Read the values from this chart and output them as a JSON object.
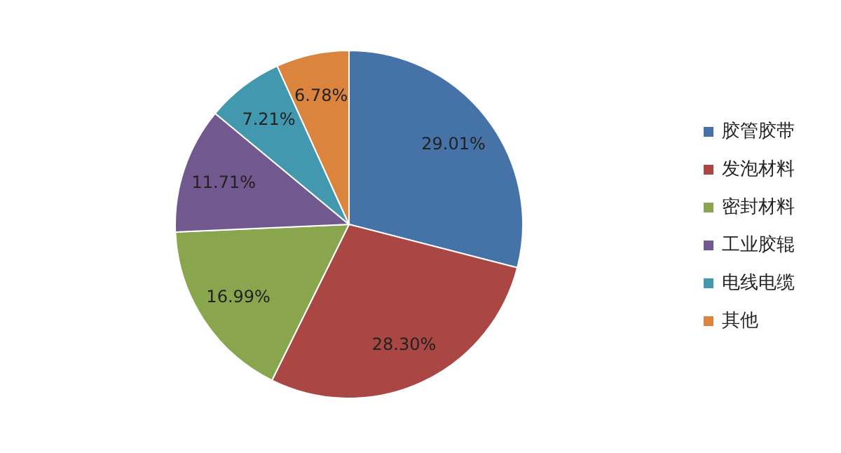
{
  "chart_data": {
    "type": "pie",
    "categories": [
      "胶管胶带",
      "发泡材料",
      "密封材料",
      "工业胶辊",
      "电线电缆",
      "其他"
    ],
    "values": [
      29.01,
      28.3,
      16.99,
      11.71,
      7.21,
      6.78
    ],
    "value_labels": [
      "29.01%",
      "28.30%",
      "16.99%",
      "11.71%",
      "7.21%",
      "6.78%"
    ],
    "colors": [
      "#4572a7",
      "#aa4643",
      "#89a54e",
      "#71588f",
      "#4198af",
      "#db843d"
    ],
    "legend": "right"
  }
}
